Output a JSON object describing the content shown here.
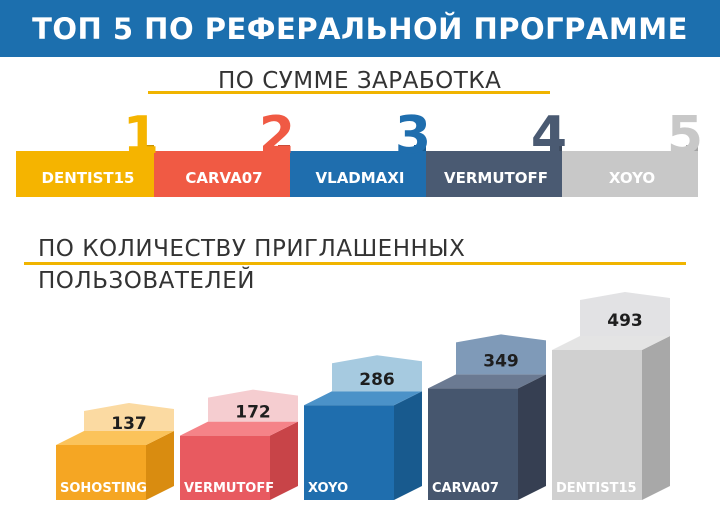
{
  "header": {
    "title": "ТОП 5 ПО РЕФЕРАЛЬНОЙ ПРОГРАММЕ"
  },
  "earnings": {
    "title": "ПО СУММЕ ЗАРАБОТКА",
    "items": [
      {
        "rank": "1",
        "name": "DENTIST15",
        "color": "#f5b400",
        "num_color": "#f5b400"
      },
      {
        "rank": "2",
        "name": "CARVA07",
        "color": "#f05a44",
        "num_color": "#f05a44"
      },
      {
        "rank": "3",
        "name": "VLADMAXI",
        "color": "#1f6eae",
        "num_color": "#1f6eae"
      },
      {
        "rank": "4",
        "name": "VERMUTOFF",
        "color": "#4a5a72",
        "num_color": "#4a5a72"
      },
      {
        "rank": "5",
        "name": "XOYO",
        "color": "#c8c8c8",
        "num_color": "#c8c8c8"
      }
    ]
  },
  "invites": {
    "title_line1": "ПО КОЛИЧЕСТВУ ПРИГЛАШЕННЫХ",
    "title_line2": "ПОЛЬЗОВАТЕЛЕЙ"
  },
  "chart_data": {
    "type": "bar",
    "categories": [
      "SOHOSTING",
      "VERMUTOFF",
      "XOYO",
      "CARVA07",
      "DENTIST15"
    ],
    "values": [
      137,
      172,
      286,
      349,
      493
    ],
    "colors": {
      "front": [
        "#f5a623",
        "#e85a60",
        "#1f6eae",
        "#46566e",
        "#d0d0d0"
      ],
      "side": [
        "#d98c10",
        "#c84448",
        "#185a8e",
        "#363f52",
        "#a8a8a8"
      ],
      "top": [
        "#fbc35a",
        "#f58388",
        "#4b92c8",
        "#6b7a92",
        "#e4e4e4"
      ],
      "label": [
        "#fbdaa2",
        "#f5cdd0",
        "#a6cae0",
        "#7f9ab8",
        "#e2e2e4"
      ]
    }
  }
}
